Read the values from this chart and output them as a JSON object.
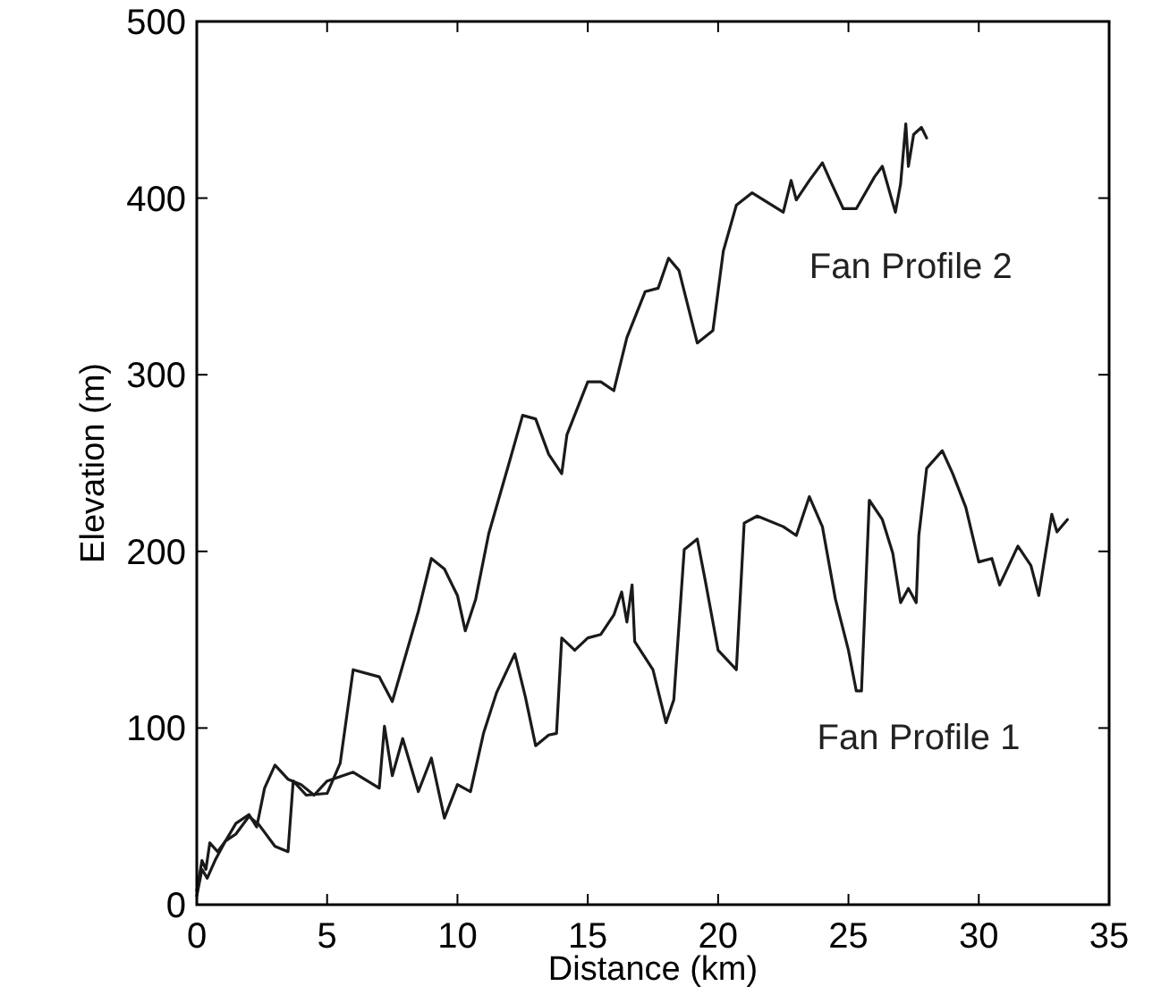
{
  "chart_data": {
    "type": "line",
    "xlabel": "Distance (km)",
    "ylabel": "Elevation (m)",
    "xlim": [
      0,
      35
    ],
    "ylim": [
      0,
      500
    ],
    "xticks": [
      0,
      5,
      10,
      15,
      20,
      25,
      30,
      35
    ],
    "yticks": [
      0,
      100,
      200,
      300,
      400,
      500
    ],
    "grid": false,
    "legend": false,
    "marker": "none",
    "line_style": "solid",
    "series": [
      {
        "name": "Fan Profile 1",
        "color": "#1a1a1a",
        "x": [
          0,
          0.2,
          0.35,
          0.5,
          0.8,
          1.1,
          1.5,
          2,
          2.3,
          2.6,
          3,
          3.5,
          4,
          4.5,
          5,
          6,
          7,
          7.2,
          7.5,
          7.9,
          8.5,
          9,
          9.5,
          10,
          10.5,
          11,
          11.5,
          12.2,
          12.6,
          13,
          13.5,
          13.8,
          14,
          14.5,
          15,
          15.5,
          16,
          16.3,
          16.5,
          16.7,
          16.8,
          17.5,
          18,
          18.3,
          18.7,
          19.2,
          19.5,
          20,
          20.7,
          21,
          21.5,
          22.5,
          23,
          23.5,
          24,
          24.5,
          25,
          25.3,
          25.5,
          25.8,
          26.3,
          26.7,
          27,
          27.3,
          27.6,
          27.7,
          28,
          28.6,
          29,
          29.5,
          30,
          30.5,
          30.8,
          31.5,
          32,
          32.3,
          32.8,
          33,
          33.4
        ],
        "values": [
          8,
          25,
          20,
          35,
          30,
          36,
          46,
          51,
          44,
          66,
          79,
          71,
          68,
          62,
          70,
          75,
          66,
          101,
          73,
          94,
          64,
          83,
          49,
          68,
          64,
          97,
          120,
          142,
          118,
          90,
          96,
          97,
          151,
          144,
          151,
          153,
          164,
          177,
          160,
          181,
          149,
          133,
          103,
          116,
          201,
          207,
          184,
          144,
          133,
          216,
          220,
          214,
          209,
          231,
          214,
          173,
          144,
          121,
          121,
          229,
          218,
          199,
          171,
          179,
          171,
          209,
          247,
          257,
          244,
          225,
          194,
          196,
          181,
          203,
          192,
          175,
          221,
          211,
          218
        ]
      },
      {
        "name": "Fan Profile 2",
        "color": "#1a1a1a",
        "x": [
          0,
          0.2,
          0.4,
          0.7,
          1.1,
          1.5,
          2,
          2.4,
          3,
          3.5,
          3.7,
          4.2,
          5,
          5.5,
          6,
          7,
          7.5,
          8.5,
          9,
          9.5,
          10,
          10.3,
          10.7,
          11.2,
          12,
          12.5,
          13,
          13.5,
          14,
          14.2,
          15,
          15.5,
          16,
          16.5,
          17.2,
          17.7,
          18.1,
          18.5,
          19.2,
          19.8,
          20.2,
          20.7,
          21.3,
          22.5,
          22.8,
          23,
          23.5,
          24,
          24.3,
          24.8,
          25.3,
          26,
          26.3,
          26.8,
          27,
          27.2,
          27.3,
          27.5,
          27.8,
          28
        ],
        "values": [
          5,
          20,
          15,
          25,
          36,
          40,
          50,
          45,
          33,
          30,
          70,
          62,
          63,
          80,
          133,
          129,
          115,
          166,
          196,
          190,
          175,
          155,
          173,
          210,
          251,
          277,
          275,
          255,
          244,
          266,
          296,
          296,
          291,
          321,
          347,
          349,
          366,
          359,
          318,
          325,
          370,
          396,
          403,
          392,
          410,
          399,
          410,
          420,
          410,
          394,
          394,
          412,
          418,
          392,
          408,
          442,
          418,
          436,
          440,
          434
        ]
      }
    ]
  }
}
